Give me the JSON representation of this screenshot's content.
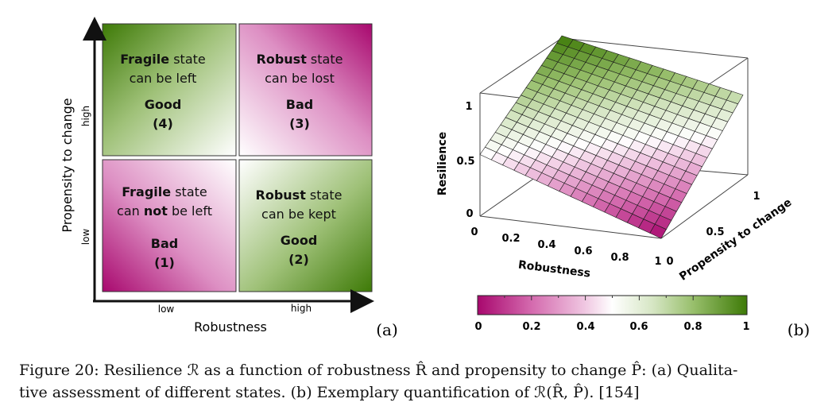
{
  "panel_a": {
    "y_axis_label": "Propensity to change",
    "x_axis_label": "Robustness",
    "y_tick_high": "high",
    "y_tick_low": "low",
    "x_tick_low": "low",
    "x_tick_high": "high",
    "panel_label": "(a)",
    "quadrants": {
      "top_left": {
        "bold_word": "Fragile",
        "line1_rest": " state",
        "line2": "can be left",
        "rating": "Good",
        "index": "(4)"
      },
      "top_right": {
        "bold_word": "Robust",
        "line1_rest": " state",
        "line2": "can be lost",
        "rating": "Bad",
        "index": "(3)"
      },
      "bottom_left": {
        "bold_word": "Fragile",
        "line1_rest": " state",
        "line2_pre": "can ",
        "line2_bold": "not",
        "line2_post": " be left",
        "rating": "Bad",
        "index": "(1)"
      },
      "bottom_right": {
        "bold_word": "Robust",
        "line1_rest": " state",
        "line2": "can be kept",
        "rating": "Good",
        "index": "(2)"
      }
    },
    "colors": {
      "green": "#3e7a07",
      "magenta": "#a8086e",
      "white": "#ffffff"
    }
  },
  "panel_b": {
    "panel_label": "(b)",
    "z_axis_label": "Resilience",
    "x_axis_label": "Robustness",
    "y_axis_label": "Propensity to change",
    "z_ticks": [
      "0",
      "0.5",
      "1"
    ],
    "x_ticks": [
      "0",
      "0.2",
      "0.4",
      "0.6",
      "0.8",
      "1"
    ],
    "y_ticks": [
      "0",
      "0.5",
      "1"
    ],
    "colorbar_ticks": [
      "0",
      "0.2",
      "0.4",
      "0.6",
      "0.8",
      "1"
    ],
    "colormap": [
      "#a8086e",
      "#d46aae",
      "#f0c8e2",
      "#ffffff",
      "#d6e6c4",
      "#98bf6c",
      "#3e7a07"
    ]
  },
  "caption": {
    "line1": "Figure 20: Resilience ℛ as a function of robustness R̂ and propensity to change P̂: (a) Qualita-",
    "line2": "tive assessment of different states. (b) Exemplary quantification of ℛ(R̂, P̂). [154]"
  }
}
